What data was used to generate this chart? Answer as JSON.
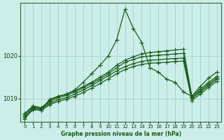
{
  "bg_color": "#cceee8",
  "grid_color": "#99cccc",
  "line_color": "#1a5c1a",
  "title": "Graphe pression niveau de la mer (hPa)",
  "xlim": [
    -0.5,
    23.5
  ],
  "ylim": [
    1018.45,
    1021.25
  ],
  "yticks": [
    1019,
    1020
  ],
  "xticks": [
    0,
    1,
    2,
    3,
    4,
    5,
    6,
    7,
    8,
    9,
    10,
    11,
    12,
    13,
    14,
    15,
    16,
    17,
    18,
    19,
    20,
    21,
    22,
    23
  ],
  "series": [
    [
      1018.65,
      1018.82,
      1018.78,
      1018.95,
      1019.05,
      1019.1,
      1019.18,
      1019.28,
      1019.38,
      1019.5,
      1019.62,
      1019.78,
      1019.9,
      1019.98,
      1020.05,
      1020.08,
      1020.1,
      1020.12,
      1020.14,
      1020.16,
      1019.05,
      1019.22,
      1019.38,
      1019.52
    ],
    [
      1018.62,
      1018.8,
      1018.77,
      1018.92,
      1019.02,
      1019.07,
      1019.15,
      1019.25,
      1019.35,
      1019.46,
      1019.58,
      1019.72,
      1019.85,
      1019.92,
      1019.98,
      1020.0,
      1020.02,
      1020.03,
      1020.05,
      1020.06,
      1019.02,
      1019.18,
      1019.34,
      1019.48
    ],
    [
      1018.58,
      1018.77,
      1018.75,
      1018.88,
      1018.97,
      1019.02,
      1019.1,
      1019.2,
      1019.3,
      1019.42,
      1019.53,
      1019.65,
      1019.75,
      1019.82,
      1019.87,
      1019.9,
      1019.91,
      1019.93,
      1019.94,
      1019.95,
      1018.99,
      1019.15,
      1019.3,
      1019.45
    ],
    [
      1018.55,
      1018.73,
      1018.72,
      1018.85,
      1018.93,
      1018.98,
      1019.05,
      1019.14,
      1019.24,
      1019.35,
      1019.46,
      1019.58,
      1019.68,
      1019.75,
      1019.8,
      1019.83,
      1019.84,
      1019.85,
      1019.87,
      1019.88,
      1018.95,
      1019.1,
      1019.26,
      1019.4
    ],
    [
      1018.52,
      1018.75,
      1018.75,
      1018.98,
      1019.05,
      1019.1,
      1019.2,
      1019.38,
      1019.58,
      1019.78,
      1020.0,
      1020.38,
      1021.1,
      1020.65,
      1020.32,
      1019.72,
      1019.62,
      1019.45,
      1019.38,
      1019.15,
      1019.05,
      1019.28,
      1019.48,
      1019.62
    ]
  ],
  "marker": "+",
  "markersize": 4,
  "linewidth": 0.9
}
